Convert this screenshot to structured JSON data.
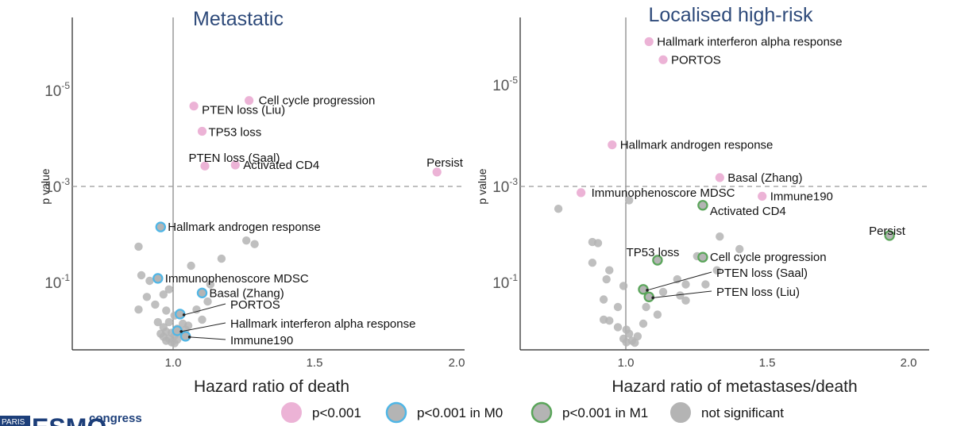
{
  "colors": {
    "sig": "#ecb3d6",
    "m0": "#4fb6e6",
    "m1": "#5aa55a",
    "ns": "#b4b4b4",
    "title": "#2e4a7a"
  },
  "legend": [
    {
      "key": "sig",
      "label": "p<0.001"
    },
    {
      "key": "m0",
      "label": "p<0.001 in M0"
    },
    {
      "key": "m1",
      "label": "p<0.001 in M1"
    },
    {
      "key": "ns",
      "label": "not significant"
    }
  ],
  "footer": {
    "city": "PARIS",
    "brand": "ESMO",
    "congress": "congress"
  },
  "chart_data": [
    {
      "type": "scatter",
      "title": "Metastatic",
      "xlabel": "Hazard ratio of death",
      "ylabel": "p value",
      "x_ticks": [
        "1.0",
        "1.5",
        "2.0"
      ],
      "y_ticks": [
        {
          "base": "10",
          "exp": "-5"
        },
        {
          "base": "10",
          "exp": "-3"
        },
        {
          "base": "10",
          "exp": "-1"
        }
      ],
      "xlim": [
        0.65,
        2.07
      ],
      "ylim_log10_neglogp": [
        0.0,
        6.6
      ],
      "threshold": "p = 10^-3",
      "grid": false,
      "points": [
        {
          "x": 1.29,
          "y": 4.95,
          "cat": "sig",
          "label": "Cell cycle progression"
        },
        {
          "x": 1.09,
          "y": 4.84,
          "cat": "sig",
          "label": "PTEN loss (Liu)"
        },
        {
          "x": 1.12,
          "y": 4.34,
          "cat": "sig",
          "label": "TP53 loss"
        },
        {
          "x": 1.24,
          "y": 3.67,
          "cat": "sig",
          "label": "Activated CD4"
        },
        {
          "x": 1.13,
          "y": 3.65,
          "cat": "sig",
          "label": "PTEN loss (Saal)"
        },
        {
          "x": 1.97,
          "y": 3.53,
          "cat": "sig",
          "label": "Persist"
        },
        {
          "x": 0.97,
          "y": 2.44,
          "cat": "m0",
          "label": "Hallmark androgen response"
        },
        {
          "x": 0.96,
          "y": 1.42,
          "cat": "m0",
          "label": "Immunophenoscore MDSC"
        },
        {
          "x": 1.12,
          "y": 1.13,
          "cat": "m0",
          "label": "Basal (Zhang)"
        },
        {
          "x": 1.04,
          "y": 0.71,
          "cat": "m0",
          "label": "PORTOS"
        },
        {
          "x": 1.03,
          "y": 0.38,
          "cat": "m0",
          "label": "Hallmark interferon alpha response"
        },
        {
          "x": 1.06,
          "y": 0.27,
          "cat": "m0",
          "label": "Immune190"
        },
        {
          "x": 1.28,
          "y": 2.17
        },
        {
          "x": 1.31,
          "y": 2.1
        },
        {
          "x": 0.89,
          "y": 2.05
        },
        {
          "x": 1.19,
          "y": 1.81
        },
        {
          "x": 1.08,
          "y": 1.67
        },
        {
          "x": 0.9,
          "y": 1.48
        },
        {
          "x": 0.93,
          "y": 1.37
        },
        {
          "x": 1.15,
          "y": 1.3
        },
        {
          "x": 1.0,
          "y": 1.2
        },
        {
          "x": 0.98,
          "y": 1.1
        },
        {
          "x": 0.92,
          "y": 1.05
        },
        {
          "x": 0.95,
          "y": 0.9
        },
        {
          "x": 1.14,
          "y": 0.96
        },
        {
          "x": 0.89,
          "y": 0.8
        },
        {
          "x": 1.1,
          "y": 0.8
        },
        {
          "x": 0.99,
          "y": 0.78
        },
        {
          "x": 1.02,
          "y": 0.68
        },
        {
          "x": 1.12,
          "y": 0.6
        },
        {
          "x": 0.96,
          "y": 0.55
        },
        {
          "x": 1.0,
          "y": 0.55
        },
        {
          "x": 1.05,
          "y": 0.52
        },
        {
          "x": 1.07,
          "y": 0.48
        },
        {
          "x": 0.98,
          "y": 0.45
        },
        {
          "x": 1.03,
          "y": 0.42
        },
        {
          "x": 1.06,
          "y": 0.4
        },
        {
          "x": 0.99,
          "y": 0.36
        },
        {
          "x": 1.01,
          "y": 0.34
        },
        {
          "x": 0.97,
          "y": 0.32
        },
        {
          "x": 1.05,
          "y": 0.3
        },
        {
          "x": 1.02,
          "y": 0.28
        },
        {
          "x": 0.98,
          "y": 0.26
        },
        {
          "x": 1.0,
          "y": 0.22
        },
        {
          "x": 1.03,
          "y": 0.2
        },
        {
          "x": 0.99,
          "y": 0.18
        },
        {
          "x": 1.01,
          "y": 0.15
        },
        {
          "x": 1.02,
          "y": 0.13
        }
      ]
    },
    {
      "type": "scatter",
      "title": "Localised high-risk",
      "xlabel": "Hazard ratio of metastases/death",
      "ylabel": "p value",
      "x_ticks": [
        "1.0",
        "1.5",
        "2.0"
      ],
      "y_ticks": [
        {
          "base": "10",
          "exp": "-5"
        },
        {
          "base": "10",
          "exp": "-3"
        },
        {
          "base": "10",
          "exp": "-1"
        }
      ],
      "xlim": [
        0.615,
        2.06
      ],
      "ylim_log10_neglogp": [
        0.0,
        6.6
      ],
      "threshold": "p = 10^-3",
      "grid": false,
      "points": [
        {
          "x": 1.07,
          "y": 6.12,
          "cat": "sig",
          "label": "Hallmark interferon alpha response"
        },
        {
          "x": 1.12,
          "y": 5.76,
          "cat": "sig",
          "label": "PORTOS"
        },
        {
          "x": 0.94,
          "y": 4.07,
          "cat": "sig",
          "label": "Hallmark androgen response"
        },
        {
          "x": 1.32,
          "y": 3.42,
          "cat": "sig",
          "label": "Basal (Zhang)"
        },
        {
          "x": 0.83,
          "y": 3.12,
          "cat": "sig",
          "label": "Immunophenoscore MDSC"
        },
        {
          "x": 1.47,
          "y": 3.05,
          "cat": "sig",
          "label": "Immune190"
        },
        {
          "x": 1.26,
          "y": 2.87,
          "cat": "m1",
          "label": "Activated CD4"
        },
        {
          "x": 1.92,
          "y": 2.27,
          "cat": "m1",
          "label": "Persist"
        },
        {
          "x": 1.26,
          "y": 1.84,
          "cat": "m1",
          "label": "Cell cycle progression"
        },
        {
          "x": 1.1,
          "y": 1.78,
          "cat": "m1",
          "label": "TP53 loss"
        },
        {
          "x": 1.05,
          "y": 1.2,
          "cat": "m1",
          "label": "PTEN loss (Saal)"
        },
        {
          "x": 1.07,
          "y": 1.05,
          "cat": "m1",
          "label": "PTEN loss (Liu)"
        },
        {
          "x": 1.0,
          "y": 2.97
        },
        {
          "x": 0.75,
          "y": 2.8
        },
        {
          "x": 1.32,
          "y": 2.25
        },
        {
          "x": 0.87,
          "y": 2.14
        },
        {
          "x": 0.89,
          "y": 2.12
        },
        {
          "x": 1.39,
          "y": 2.0
        },
        {
          "x": 1.24,
          "y": 1.86
        },
        {
          "x": 0.87,
          "y": 1.73
        },
        {
          "x": 0.93,
          "y": 1.58
        },
        {
          "x": 1.31,
          "y": 1.58
        },
        {
          "x": 0.92,
          "y": 1.4
        },
        {
          "x": 1.17,
          "y": 1.4
        },
        {
          "x": 1.2,
          "y": 1.3
        },
        {
          "x": 1.27,
          "y": 1.3
        },
        {
          "x": 0.98,
          "y": 1.27
        },
        {
          "x": 1.12,
          "y": 1.15
        },
        {
          "x": 1.18,
          "y": 1.08
        },
        {
          "x": 0.91,
          "y": 1.0
        },
        {
          "x": 1.2,
          "y": 0.98
        },
        {
          "x": 0.96,
          "y": 0.85
        },
        {
          "x": 1.06,
          "y": 0.85
        },
        {
          "x": 1.1,
          "y": 0.7
        },
        {
          "x": 0.91,
          "y": 0.6
        },
        {
          "x": 0.93,
          "y": 0.58
        },
        {
          "x": 1.05,
          "y": 0.52
        },
        {
          "x": 0.96,
          "y": 0.45
        },
        {
          "x": 0.99,
          "y": 0.4
        },
        {
          "x": 1.0,
          "y": 0.32
        },
        {
          "x": 1.03,
          "y": 0.27
        },
        {
          "x": 0.98,
          "y": 0.22
        },
        {
          "x": 1.01,
          "y": 0.18
        },
        {
          "x": 0.99,
          "y": 0.15
        },
        {
          "x": 1.02,
          "y": 0.14
        }
      ]
    }
  ]
}
